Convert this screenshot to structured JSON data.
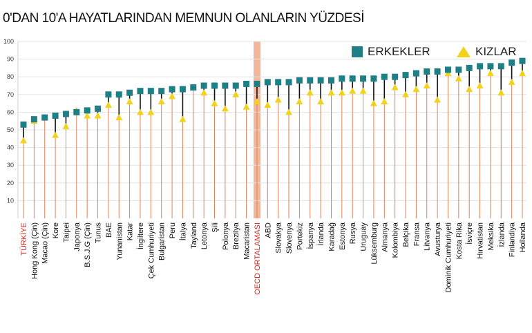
{
  "title": "0'DAN 10'A HAYATLARINDAN MEMNUN OLANLARIN YÜZDESİ",
  "colors": {
    "erkekler": "#1f7f86",
    "kizlar": "#f2d21b",
    "stem": "#e0805a",
    "oecd_band": "#f1b69c",
    "highlight_label": "#d12a1f",
    "grid": "#e3e3e3"
  },
  "legend": {
    "erkekler": "ERKEKLER",
    "kizlar": "KIZLAR",
    "erkekler_icon": "teal-square-icon",
    "kizlar_icon": "yellow-triangle-icon"
  },
  "chart_data": {
    "type": "scatter",
    "title": "0'DAN 10'A HAYATLARINDAN MEMNUN OLANLARIN YÜZDESİ",
    "ylim": [
      0,
      100
    ],
    "yticks": [
      10,
      20,
      30,
      40,
      50,
      60,
      70,
      80,
      90,
      100
    ],
    "grid": true,
    "legend_position": "top-right",
    "highlight_categories": [
      "TÜRKİYE",
      "OECD ORTALAMASI"
    ],
    "categories": [
      "TÜRKİYE",
      "Hong Kong (Çin)",
      "Macao (Çin)",
      "Kore",
      "Taipei",
      "Japonya",
      "B.S.J.G (Çin)",
      "Tunus",
      "BAE",
      "Yunanistan",
      "Katar",
      "İngiltere",
      "Çek Cumhuriyeti",
      "Bulgaristan",
      "Peru",
      "İtalya",
      "Tayland",
      "Letonya",
      "Şili",
      "Polonya",
      "Brezilya",
      "Macaristan",
      "OECD ORTALAMASI",
      "ABD",
      "Slovakya",
      "Slovenya",
      "Portekiz",
      "İspanya",
      "İrlanda",
      "Karadağ",
      "Estonya",
      "Rusya",
      "Uruguay",
      "Lüksemburg",
      "Almanya",
      "Kolombiya",
      "Belçika",
      "Fransa",
      "Litvanya",
      "Avusturya",
      "Dominik Cumhuriyeti",
      "Kosta Rika",
      "İsviçre",
      "Hırvatistan",
      "Meksika",
      "İzlanda",
      "Finlandiya",
      "Hollanda"
    ],
    "series": [
      {
        "name": "ERKEKLER",
        "values": [
          53,
          56,
          57,
          58,
          59,
          60,
          61,
          62,
          70,
          70,
          71,
          72,
          72,
          72,
          73,
          73,
          74,
          75,
          75,
          75,
          75,
          76,
          76,
          77,
          77,
          77,
          78,
          78,
          78,
          78,
          79,
          79,
          79,
          79,
          80,
          80,
          81,
          82,
          83,
          83,
          84,
          84,
          85,
          86,
          86,
          86,
          88,
          89
        ]
      },
      {
        "name": "KIZLAR",
        "values": [
          44,
          55,
          57,
          47,
          52,
          61,
          58,
          58,
          64,
          57,
          66,
          60,
          60,
          66,
          69,
          56,
          74,
          71,
          65,
          62,
          70,
          63,
          66,
          64,
          67,
          60,
          66,
          71,
          66,
          71,
          71,
          72,
          72,
          65,
          66,
          74,
          70,
          73,
          75,
          67,
          82,
          79,
          73,
          75,
          82,
          71,
          77,
          82
        ]
      }
    ]
  }
}
